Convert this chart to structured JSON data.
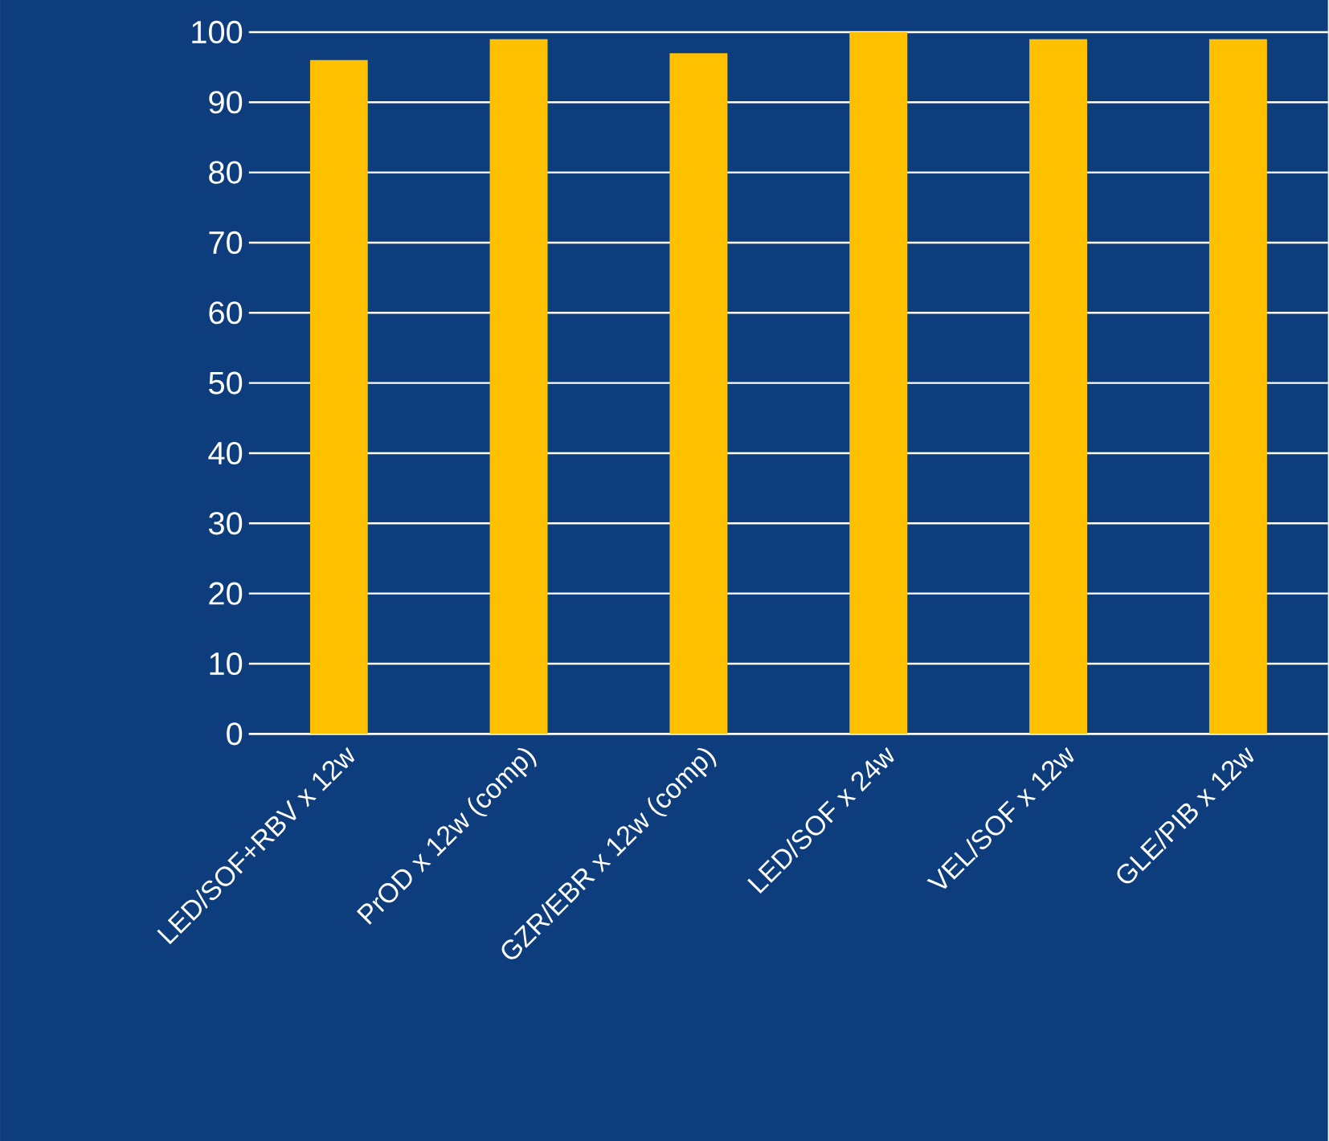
{
  "chart_data": {
    "type": "bar",
    "categories": [
      "LED/SOF+RBV x 12w",
      "PrOD x 12w (comp)",
      "GZR/EBR x 12w (comp)",
      "LED/SOF x 24w",
      "VEL/SOF x 12w",
      "GLE/PIB x 12w"
    ],
    "values": [
      96,
      99,
      97,
      100,
      99,
      99
    ],
    "color": "#ffc000",
    "ylim": [
      0,
      100
    ],
    "yticks": [
      0,
      10,
      20,
      30,
      40,
      50,
      60,
      70,
      80,
      90,
      100
    ],
    "grid": "y"
  }
}
